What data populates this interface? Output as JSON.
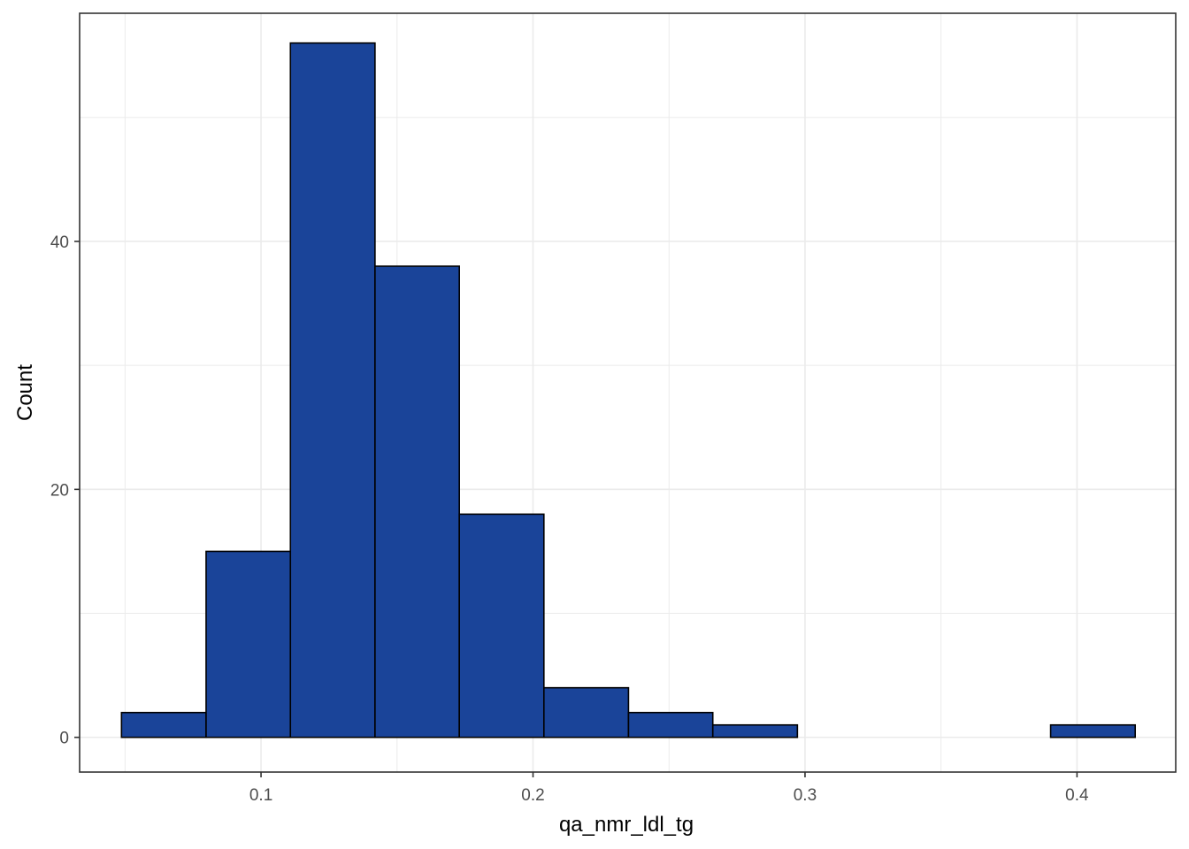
{
  "chart_data": {
    "type": "bar",
    "subtype": "histogram",
    "xlabel": "qa_nmr_ldl_tg",
    "ylabel": "Count",
    "xlim": [
      0.0333,
      0.4363
    ],
    "ylim": [
      -2.8,
      58.4
    ],
    "x_ticks": [
      0.1,
      0.2,
      0.3,
      0.4
    ],
    "x_tick_labels": [
      "0.1",
      "0.2",
      "0.3",
      "0.4"
    ],
    "x_minor_ticks": [
      0.05,
      0.15,
      0.25,
      0.35
    ],
    "y_ticks": [
      0,
      20,
      40
    ],
    "y_tick_labels": [
      "0",
      "20",
      "40"
    ],
    "y_minor_ticks": [
      10,
      30,
      50
    ],
    "bins": [
      {
        "x0": 0.0487,
        "x1": 0.0798,
        "count": 2
      },
      {
        "x0": 0.0798,
        "x1": 0.1108,
        "count": 15
      },
      {
        "x0": 0.1108,
        "x1": 0.1419,
        "count": 56
      },
      {
        "x0": 0.1419,
        "x1": 0.1729,
        "count": 38
      },
      {
        "x0": 0.1729,
        "x1": 0.204,
        "count": 18
      },
      {
        "x0": 0.204,
        "x1": 0.2351,
        "count": 4
      },
      {
        "x0": 0.2351,
        "x1": 0.2661,
        "count": 2
      },
      {
        "x0": 0.2661,
        "x1": 0.2972,
        "count": 1
      },
      {
        "x0": 0.2972,
        "x1": 0.3282,
        "count": 0
      },
      {
        "x0": 0.3282,
        "x1": 0.3593,
        "count": 0
      },
      {
        "x0": 0.3593,
        "x1": 0.3903,
        "count": 0
      },
      {
        "x0": 0.3903,
        "x1": 0.4214,
        "count": 1
      }
    ],
    "fill_color": "#1A4499",
    "edge_color": "#000000",
    "grid": true,
    "grid_color": "#EBEBEB",
    "panel_border_color": "#333333",
    "tick_label_color": "#4D4D4D"
  }
}
